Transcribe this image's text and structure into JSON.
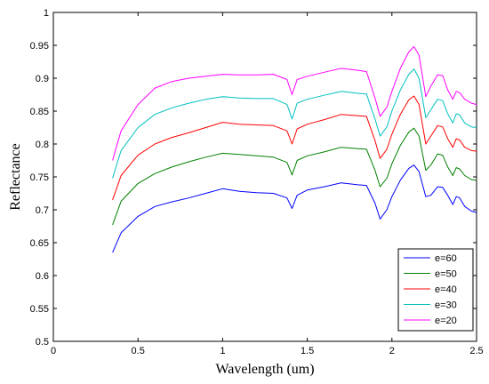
{
  "chart_data": {
    "type": "line",
    "title": "",
    "xlabel": "Wavelength (um)",
    "ylabel": "Reflectance",
    "xlim": [
      0,
      2.5
    ],
    "ylim": [
      0.5,
      1.0
    ],
    "xticks": [
      "0",
      "0.5",
      "1",
      "1.5",
      "2",
      "2.5"
    ],
    "yticks": [
      "0.5",
      "0.55",
      "0.6",
      "0.65",
      "0.7",
      "0.75",
      "0.8",
      "0.85",
      "0.9",
      "0.95",
      "1"
    ],
    "grid": false,
    "legend_position": "bottom-right",
    "x": [
      0.35,
      0.4,
      0.5,
      0.6,
      0.7,
      0.8,
      0.9,
      1.0,
      1.1,
      1.2,
      1.3,
      1.38,
      1.41,
      1.44,
      1.5,
      1.6,
      1.7,
      1.8,
      1.85,
      1.9,
      1.93,
      1.97,
      2.0,
      2.05,
      2.1,
      2.13,
      2.16,
      2.2,
      2.23,
      2.27,
      2.3,
      2.33,
      2.36,
      2.38,
      2.4,
      2.43,
      2.47,
      2.5
    ],
    "series": [
      {
        "name": "e=60",
        "color": "#0000ff",
        "values": [
          0.635,
          0.665,
          0.69,
          0.705,
          0.712,
          0.718,
          0.725,
          0.732,
          0.728,
          0.726,
          0.725,
          0.718,
          0.702,
          0.722,
          0.73,
          0.735,
          0.741,
          0.738,
          0.737,
          0.71,
          0.686,
          0.7,
          0.72,
          0.745,
          0.763,
          0.768,
          0.758,
          0.72,
          0.722,
          0.735,
          0.734,
          0.722,
          0.708,
          0.72,
          0.718,
          0.705,
          0.698,
          0.696
        ]
      },
      {
        "name": "e=50",
        "color": "#008000",
        "values": [
          0.677,
          0.713,
          0.74,
          0.755,
          0.765,
          0.773,
          0.78,
          0.786,
          0.784,
          0.782,
          0.78,
          0.772,
          0.753,
          0.775,
          0.782,
          0.788,
          0.795,
          0.793,
          0.792,
          0.76,
          0.735,
          0.748,
          0.77,
          0.798,
          0.818,
          0.824,
          0.812,
          0.76,
          0.768,
          0.785,
          0.783,
          0.765,
          0.752,
          0.764,
          0.762,
          0.752,
          0.746,
          0.745
        ]
      },
      {
        "name": "e=40",
        "color": "#ff0000",
        "values": [
          0.715,
          0.752,
          0.783,
          0.8,
          0.81,
          0.817,
          0.825,
          0.833,
          0.83,
          0.829,
          0.828,
          0.82,
          0.8,
          0.823,
          0.83,
          0.837,
          0.845,
          0.843,
          0.842,
          0.805,
          0.778,
          0.792,
          0.815,
          0.845,
          0.867,
          0.873,
          0.86,
          0.8,
          0.812,
          0.828,
          0.826,
          0.808,
          0.795,
          0.808,
          0.806,
          0.795,
          0.79,
          0.789
        ]
      },
      {
        "name": "e=30",
        "color": "#00bfbf",
        "values": [
          0.748,
          0.79,
          0.825,
          0.845,
          0.855,
          0.862,
          0.868,
          0.872,
          0.87,
          0.869,
          0.869,
          0.86,
          0.838,
          0.862,
          0.868,
          0.874,
          0.88,
          0.877,
          0.876,
          0.838,
          0.812,
          0.826,
          0.85,
          0.882,
          0.906,
          0.914,
          0.9,
          0.84,
          0.852,
          0.868,
          0.866,
          0.846,
          0.832,
          0.846,
          0.844,
          0.832,
          0.826,
          0.825
        ]
      },
      {
        "name": "e=20",
        "color": "#ff00ff",
        "values": [
          0.775,
          0.82,
          0.86,
          0.885,
          0.895,
          0.9,
          0.903,
          0.906,
          0.905,
          0.905,
          0.906,
          0.898,
          0.875,
          0.898,
          0.903,
          0.909,
          0.915,
          0.912,
          0.91,
          0.87,
          0.842,
          0.856,
          0.88,
          0.915,
          0.94,
          0.948,
          0.935,
          0.872,
          0.888,
          0.905,
          0.904,
          0.882,
          0.868,
          0.88,
          0.878,
          0.868,
          0.862,
          0.86
        ]
      }
    ]
  }
}
